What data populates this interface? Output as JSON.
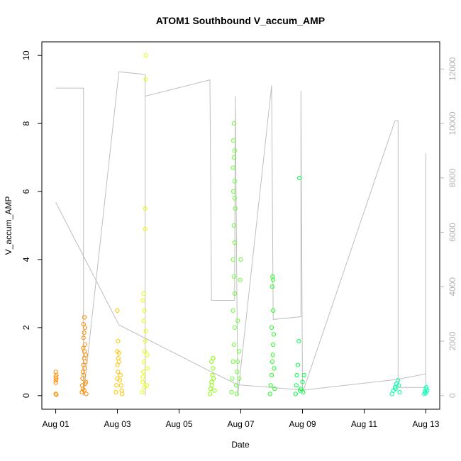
{
  "chart_data": {
    "type": "scatter",
    "title": "ATOM1 Southbound V_accum_AMP",
    "xlabel": "Date",
    "ylabel": "V_accum_AMP",
    "x_tick_labels": [
      "Aug 01",
      "Aug 03",
      "Aug 05",
      "Aug 07",
      "Aug 09",
      "Aug 11",
      "Aug 13"
    ],
    "x_tick_days": [
      1,
      3,
      5,
      7,
      9,
      11,
      13
    ],
    "xlim": [
      0.55,
      13.45
    ],
    "ylim": [
      -0.4,
      10.4
    ],
    "y_ticks": [
      0,
      2,
      4,
      6,
      8,
      10
    ],
    "y2_ticks": [
      0,
      2000,
      4000,
      6000,
      8000,
      10000,
      12000
    ],
    "y2lim": [
      -500,
      13000
    ],
    "colors": {
      "secondary_line": "#bebebe",
      "axis": "#000000",
      "right_axis": "#b3b3b3"
    },
    "series": [
      {
        "color": "#ff8c00",
        "points": [
          [
            1.0,
            0.7
          ],
          [
            1.0,
            0.55
          ],
          [
            1.0,
            0.45
          ],
          [
            1.0,
            0.38
          ],
          [
            1.0,
            0.05
          ],
          [
            1.02,
            0.03
          ],
          [
            1.02,
            0.6
          ],
          [
            1.02,
            0.5
          ]
        ]
      },
      {
        "color": "#ff8c00",
        "points": [
          [
            1.85,
            0.1
          ],
          [
            1.86,
            0.3
          ],
          [
            1.87,
            0.5
          ],
          [
            1.88,
            0.7
          ],
          [
            1.9,
            0.9
          ],
          [
            1.92,
            1.1
          ],
          [
            1.93,
            1.3
          ],
          [
            1.95,
            1.5
          ],
          [
            1.9,
            1.7
          ],
          [
            1.92,
            1.85
          ],
          [
            1.95,
            2.0
          ],
          [
            1.9,
            2.1
          ],
          [
            1.93,
            2.3
          ],
          [
            1.88,
            0.2
          ],
          [
            1.91,
            0.6
          ],
          [
            1.94,
            0.8
          ],
          [
            1.96,
            1.0
          ],
          [
            1.97,
            1.2
          ],
          [
            1.98,
            0.4
          ],
          [
            1.99,
            0.05
          ],
          [
            1.89,
            1.4
          ],
          [
            1.92,
            0.15
          ],
          [
            1.95,
            0.35
          ]
        ]
      },
      {
        "color": "#ffc400",
        "points": [
          [
            2.95,
            0.1
          ],
          [
            2.97,
            0.3
          ],
          [
            3.0,
            0.5
          ],
          [
            3.02,
            0.7
          ],
          [
            3.0,
            0.9
          ],
          [
            3.03,
            1.1
          ],
          [
            3.0,
            1.3
          ],
          [
            3.05,
            1.0
          ],
          [
            3.1,
            0.6
          ],
          [
            3.12,
            0.3
          ],
          [
            3.14,
            0.15
          ],
          [
            3.02,
            1.6
          ],
          [
            3.05,
            1.25
          ],
          [
            3.0,
            2.5
          ],
          [
            3.08,
            0.45
          ],
          [
            3.15,
            0.05
          ]
        ]
      },
      {
        "color": "#e5ff00",
        "points": [
          [
            3.8,
            0.1
          ],
          [
            3.82,
            0.4
          ],
          [
            3.84,
            0.7
          ],
          [
            3.86,
            1.0
          ],
          [
            3.88,
            1.3
          ],
          [
            3.9,
            1.6
          ],
          [
            3.92,
            1.9
          ],
          [
            3.85,
            2.2
          ],
          [
            3.87,
            2.5
          ],
          [
            3.82,
            2.8
          ],
          [
            3.85,
            3.0
          ],
          [
            3.9,
            4.9
          ],
          [
            3.9,
            5.5
          ],
          [
            3.92,
            9.3
          ],
          [
            3.92,
            10.0
          ],
          [
            3.95,
            0.3
          ],
          [
            3.97,
            0.8
          ],
          [
            3.96,
            1.2
          ],
          [
            3.83,
            0.55
          ],
          [
            3.88,
            0.25
          ]
        ]
      },
      {
        "color": "#88ff00",
        "points": [
          [
            6.0,
            0.05
          ],
          [
            6.02,
            0.2
          ],
          [
            6.05,
            0.4
          ],
          [
            6.08,
            0.6
          ],
          [
            6.1,
            0.8
          ],
          [
            6.05,
            1.0
          ],
          [
            6.1,
            1.1
          ],
          [
            6.06,
            0.3
          ],
          [
            6.12,
            0.5
          ],
          [
            6.15,
            0.15
          ]
        ]
      },
      {
        "color": "#66ff33",
        "points": [
          [
            6.7,
            0.1
          ],
          [
            6.72,
            0.5
          ],
          [
            6.75,
            1.0
          ],
          [
            6.78,
            1.5
          ],
          [
            6.8,
            2.0
          ],
          [
            6.75,
            2.5
          ],
          [
            6.8,
            3.0
          ],
          [
            6.78,
            3.5
          ],
          [
            6.75,
            4.0
          ],
          [
            6.8,
            4.5
          ],
          [
            6.78,
            5.0
          ],
          [
            6.82,
            5.5
          ],
          [
            6.8,
            5.8
          ],
          [
            6.76,
            6.0
          ],
          [
            6.8,
            6.3
          ],
          [
            6.75,
            6.7
          ],
          [
            6.78,
            7.0
          ],
          [
            6.8,
            7.2
          ],
          [
            6.76,
            7.5
          ],
          [
            6.78,
            8.0
          ],
          [
            6.85,
            0.3
          ],
          [
            6.88,
            0.7
          ],
          [
            6.9,
            1.0
          ],
          [
            6.95,
            1.3
          ],
          [
            6.98,
            3.4
          ],
          [
            7.0,
            4.0
          ],
          [
            6.9,
            2.2
          ],
          [
            6.87,
            0.05
          ],
          [
            6.95,
            0.5
          ]
        ]
      },
      {
        "color": "#22ff22",
        "points": [
          [
            7.95,
            0.05
          ],
          [
            7.97,
            0.3
          ],
          [
            8.0,
            0.6
          ],
          [
            8.02,
            1.0
          ],
          [
            8.05,
            1.5
          ],
          [
            8.0,
            2.0
          ],
          [
            8.05,
            2.5
          ],
          [
            8.02,
            3.2
          ],
          [
            8.05,
            3.4
          ],
          [
            8.03,
            3.5
          ],
          [
            8.07,
            1.8
          ],
          [
            8.1,
            0.2
          ],
          [
            8.08,
            0.8
          ],
          [
            8.04,
            1.2
          ]
        ]
      },
      {
        "color": "#00ff44",
        "points": [
          [
            8.78,
            0.05
          ],
          [
            8.8,
            0.3
          ],
          [
            8.82,
            0.6
          ],
          [
            8.85,
            0.9
          ],
          [
            8.88,
            1.6
          ],
          [
            8.9,
            6.4
          ],
          [
            8.95,
            0.2
          ],
          [
            9.0,
            0.4
          ],
          [
            9.05,
            0.6
          ],
          [
            9.02,
            0.1
          ],
          [
            8.92,
            0.15
          ]
        ]
      },
      {
        "color": "#00ffa0",
        "points": [
          [
            11.9,
            0.05
          ],
          [
            11.95,
            0.15
          ],
          [
            12.0,
            0.25
          ],
          [
            12.05,
            0.35
          ],
          [
            12.1,
            0.45
          ],
          [
            12.12,
            0.3
          ],
          [
            12.15,
            0.1
          ],
          [
            12.02,
            0.2
          ]
        ]
      },
      {
        "color": "#00ffb4",
        "points": [
          [
            12.95,
            0.05
          ],
          [
            12.97,
            0.12
          ],
          [
            13.0,
            0.2
          ],
          [
            13.02,
            0.25
          ],
          [
            13.04,
            0.15
          ],
          [
            13.0,
            0.08
          ]
        ]
      }
    ],
    "secondary_line": {
      "axis": "right",
      "points": [
        [
          1.0,
          11300
        ],
        [
          1.9,
          11300
        ],
        [
          1.9,
          2000
        ],
        [
          1.9,
          11300
        ],
        [
          1.9,
          0
        ],
        [
          3.0,
          11400
        ],
        [
          3.05,
          11900
        ],
        [
          3.9,
          11800
        ],
        [
          3.9,
          0
        ],
        [
          3.9,
          11000
        ],
        [
          6.0,
          11600
        ],
        [
          6.05,
          3500
        ],
        [
          6.8,
          3500
        ],
        [
          6.82,
          11000
        ],
        [
          6.9,
          0
        ],
        [
          8.0,
          11400
        ],
        [
          8.05,
          2800
        ],
        [
          8.95,
          2900
        ],
        [
          8.95,
          11200
        ],
        [
          9.0,
          100
        ],
        [
          12.0,
          10100
        ],
        [
          12.1,
          10100
        ],
        [
          12.1,
          300
        ],
        [
          13.0,
          300
        ],
        [
          13.0,
          8900
        ],
        [
          13.0,
          800
        ],
        [
          12.1,
          600
        ],
        [
          9.0,
          200
        ],
        [
          8.0,
          300
        ],
        [
          6.9,
          400
        ],
        [
          6.0,
          900
        ],
        [
          3.05,
          2600
        ],
        [
          1.0,
          7100
        ]
      ]
    }
  }
}
